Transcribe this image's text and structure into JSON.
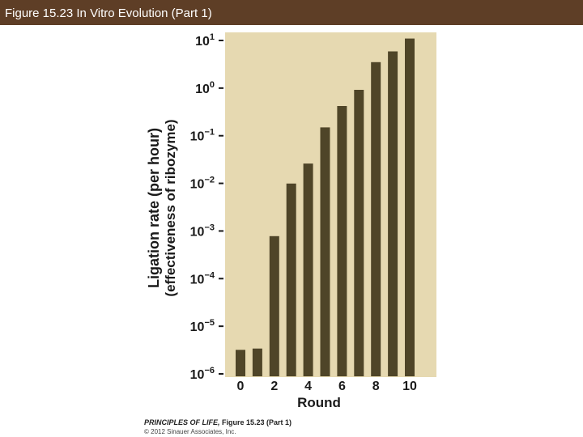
{
  "header": {
    "title": "Figure 15.23  In Vitro Evolution (Part 1)"
  },
  "footer": {
    "book": "PRINCIPLES OF LIFE,",
    "figure": " Figure 15.23 (Part 1)",
    "copyright": "© 2012 Sinauer Associates, Inc."
  },
  "colors": {
    "header_bg": "#5e3e26",
    "plot_bg": "#e6d9b1",
    "bar": "#4f4528"
  },
  "chart_data": {
    "type": "bar",
    "xlabel": "Round",
    "ylabel_line1": "Ligation rate (per hour)",
    "ylabel_line2": "(effectiveness of ribozyme)",
    "y_scale": "log",
    "ylim": [
      1e-06,
      10
    ],
    "y_ticks": [
      {
        "base": "10",
        "exp": "1"
      },
      {
        "base": "10",
        "exp": "0"
      },
      {
        "base": "10",
        "exp": "−1"
      },
      {
        "base": "10",
        "exp": "−2"
      },
      {
        "base": "10",
        "exp": "−3"
      },
      {
        "base": "10",
        "exp": "−4"
      },
      {
        "base": "10",
        "exp": "−5"
      },
      {
        "base": "10",
        "exp": "−6"
      }
    ],
    "x_tick_labels": [
      "0",
      "2",
      "4",
      "6",
      "8",
      "10"
    ],
    "rounds": [
      0,
      1,
      2,
      3,
      4,
      5,
      6,
      7,
      8,
      9,
      10
    ],
    "values": [
      3.2e-06,
      3.4e-06,
      0.00078,
      0.0099,
      0.026,
      0.15,
      0.42,
      0.92,
      3.5,
      5.9,
      11
    ]
  }
}
